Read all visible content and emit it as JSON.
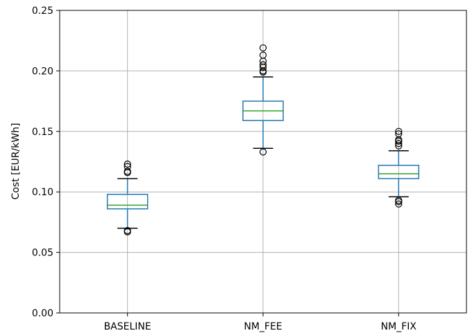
{
  "chart_data": {
    "type": "box",
    "title": "",
    "xlabel": "",
    "ylabel": "Cost [EUR/kWh]",
    "ylim": [
      0,
      0.25
    ],
    "yticks": [
      "0.00",
      "0.05",
      "0.10",
      "0.15",
      "0.20",
      "0.25"
    ],
    "grid": true,
    "colors": {
      "box": "#1f77b4",
      "median": "#2ca02c",
      "whisker": "#1f77b4",
      "cap": "#000000",
      "flier": "#000000",
      "grid": "#b0b0b0"
    },
    "categories": [
      "BASELINE",
      "NM_FEE",
      "NM_FIX"
    ],
    "boxes": [
      {
        "category": "BASELINE",
        "whislo": 0.07,
        "q1": 0.086,
        "med": 0.089,
        "q3": 0.098,
        "whishi": 0.111,
        "fliers": [
          0.067,
          0.068,
          0.116,
          0.117,
          0.121,
          0.123
        ]
      },
      {
        "category": "NM_FEE",
        "whislo": 0.136,
        "q1": 0.159,
        "med": 0.167,
        "q3": 0.175,
        "whishi": 0.195,
        "fliers": [
          0.133,
          0.199,
          0.2,
          0.203,
          0.205,
          0.208,
          0.213,
          0.219
        ]
      },
      {
        "category": "NM_FIX",
        "whislo": 0.096,
        "q1": 0.111,
        "med": 0.115,
        "q3": 0.122,
        "whishi": 0.134,
        "fliers": [
          0.09,
          0.092,
          0.093,
          0.138,
          0.14,
          0.142,
          0.143,
          0.148,
          0.15
        ]
      }
    ]
  }
}
